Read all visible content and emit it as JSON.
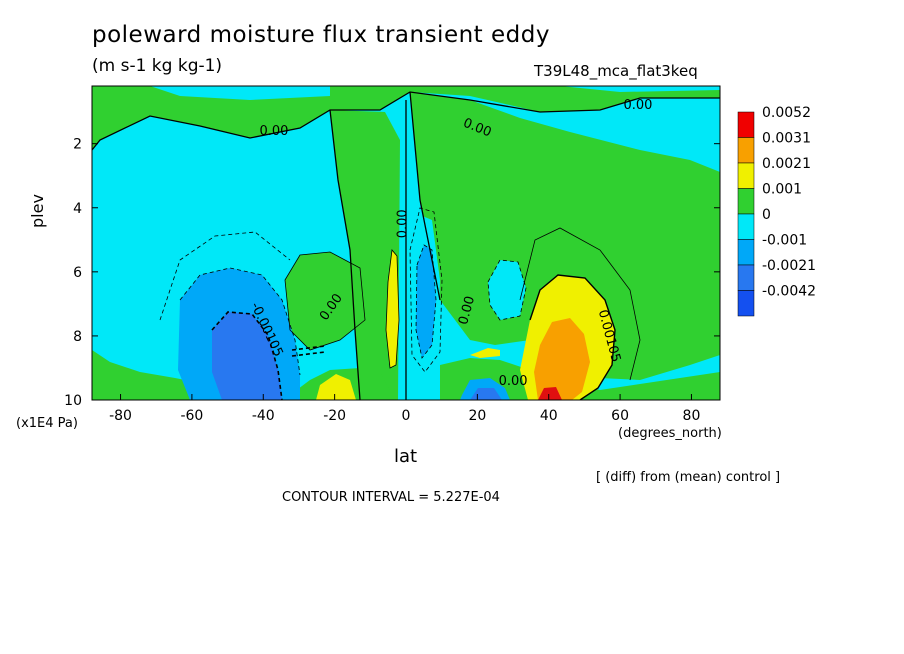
{
  "title": "poleward moisture flux transient eddy",
  "units": "(m s-1 kg kg-1)",
  "run_name": "T39L48_mca_flat3keq",
  "diff_note": "[ (diff) from (mean) control ]",
  "contour_interval": "CONTOUR INTERVAL = 5.227E-04",
  "chart_data": {
    "type": "contour",
    "xlabel": "lat",
    "x_unit": "(degrees_north)",
    "ylabel": "plev",
    "y_unit": "(x1E4 Pa)",
    "xlim": [
      -88,
      88
    ],
    "ylim": [
      10,
      0.2
    ],
    "x_ticks": [
      "-80",
      "-60",
      "-40",
      "-20",
      "0",
      "20",
      "40",
      "60",
      "80"
    ],
    "y_ticks": [
      "2",
      "4",
      "6",
      "8",
      "10"
    ],
    "contour_labels": [
      "0.00",
      "0.00",
      "0.00",
      "0.00",
      "0.00",
      "0.00",
      "-0.00105",
      "0.00105",
      "0.00"
    ],
    "legend": {
      "levels": [
        "0.0052",
        "0.0031",
        "0.0021",
        "0.001",
        "0",
        "-0.001",
        "-0.0021",
        "-0.0042"
      ],
      "colors": [
        "#f00000",
        "#f8a000",
        "#f0f000",
        "#30d030",
        "#00e8f8",
        "#00a8f8",
        "#2878f0",
        "#1450f0"
      ]
    },
    "fill_colors": {
      "positive_low": "#30d030",
      "positive_mid": "#f0f000",
      "positive_high": "#f8a000",
      "positive_max": "#e01010",
      "negative_low": "#00e8f8",
      "negative_mid": "#00a8f8",
      "negative_high": "#2878f0"
    }
  }
}
